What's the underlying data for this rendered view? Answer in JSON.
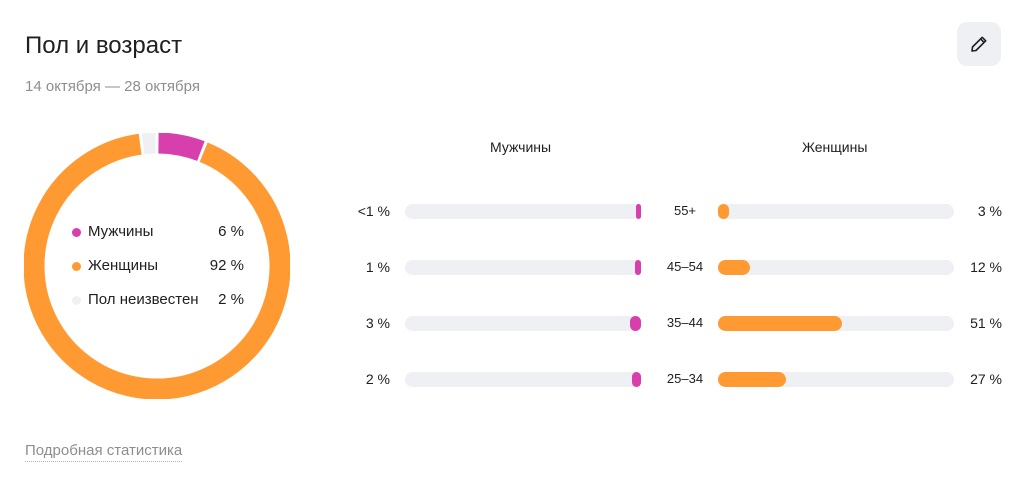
{
  "header": {
    "title": "Пол и возраст",
    "period": "14 октября — 28 октября",
    "edit_icon": "pencil-icon"
  },
  "colors": {
    "male": "#d63fac",
    "female": "#ff9a33",
    "unknown": "#eef0f4",
    "track": "#eff0f4"
  },
  "gender": {
    "items": [
      {
        "label": "Мужчины",
        "value": "6 %",
        "share": 6,
        "color": "#d63fac"
      },
      {
        "label": "Женщины",
        "value": "92 %",
        "share": 92,
        "color": "#ff9a33"
      },
      {
        "label": "Пол неизвестен",
        "value": "2 %",
        "share": 2,
        "color": "#eef0f4"
      }
    ]
  },
  "age": {
    "male_header": "Мужчины",
    "female_header": "Женщины",
    "rows": [
      {
        "age": "55+",
        "male_label": "<1 %",
        "male_value": 0.5,
        "female_label": "3 %",
        "female_value": 3
      },
      {
        "age": "45–54",
        "male_label": "1 %",
        "male_value": 1,
        "female_label": "12 %",
        "female_value": 12
      },
      {
        "age": "35–44",
        "male_label": "3 %",
        "male_value": 3,
        "female_label": "51 %",
        "female_value": 51
      },
      {
        "age": "25–34",
        "male_label": "2 %",
        "male_value": 2,
        "female_label": "27 %",
        "female_value": 27
      }
    ]
  },
  "footer": {
    "details_link": "Подробная статистика"
  }
}
